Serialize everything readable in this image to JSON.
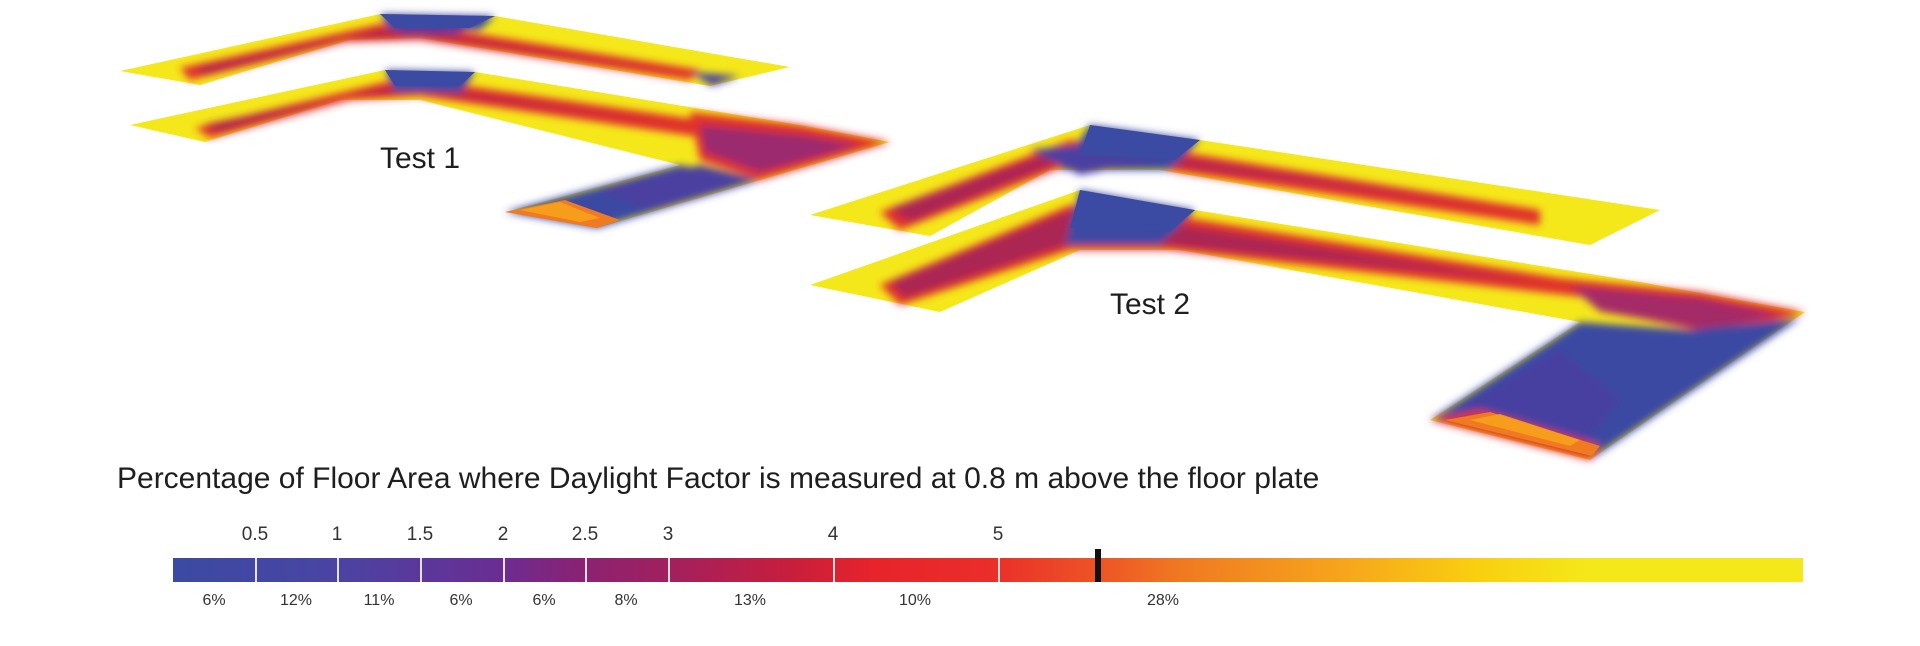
{
  "plans": [
    {
      "label": "Test 1"
    },
    {
      "label": "Test 2"
    }
  ],
  "caption": "Percentage of Floor Area where Daylight Factor is measured at 0.8 m above the floor plate",
  "legend": {
    "ticks": [
      "0.5",
      "1",
      "1.5",
      "2",
      "2.5",
      "3",
      "4",
      "5"
    ],
    "percentages": [
      "6%",
      "12%",
      "11%",
      "6%",
      "6%",
      "8%",
      "13%",
      "10%",
      "28%"
    ],
    "colors": {
      "low": "#3b4aa3",
      "mid_low": "#6a2d93",
      "mid": "#a0205f",
      "high": "#e8232b",
      "orange": "#f07a22",
      "gold": "#f7b51a",
      "top": "#f5e81a"
    }
  }
}
